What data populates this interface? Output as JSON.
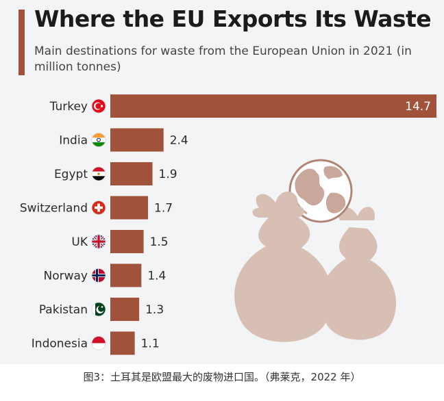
{
  "colors": {
    "bar": "#a0523a",
    "illustration": "#d8bfb4",
    "illustration_dark": "#c9a89b"
  },
  "chart_data": {
    "type": "bar",
    "orientation": "horizontal",
    "title": "Where the EU Exports Its Waste",
    "subtitle": "Main destinations for waste from the European Union in 2021 (in million tonnes)",
    "categories": [
      "Turkey",
      "India",
      "Egypt",
      "Switzerland",
      "UK",
      "Norway",
      "Pakistan",
      "Indonesia"
    ],
    "values": [
      14.7,
      2.4,
      1.9,
      1.7,
      1.5,
      1.4,
      1.3,
      1.1
    ],
    "value_labels": [
      "14.7",
      "2.4",
      "1.9",
      "1.7",
      "1.5",
      "1.4",
      "1.3",
      "1.1"
    ],
    "flag_icons": [
      "flag-turkey-icon",
      "flag-india-icon",
      "flag-egypt-icon",
      "flag-switzerland-icon",
      "flag-uk-icon",
      "flag-norway-icon",
      "flag-pakistan-icon",
      "flag-indonesia-icon"
    ],
    "xlim": [
      0,
      14.7
    ],
    "grid": false,
    "legend": "none",
    "illustration": "globe-and-waste-bags-icon"
  },
  "caption": "图3：土耳其是欧盟最大的废物进口国。（弗莱克，2022 年）"
}
